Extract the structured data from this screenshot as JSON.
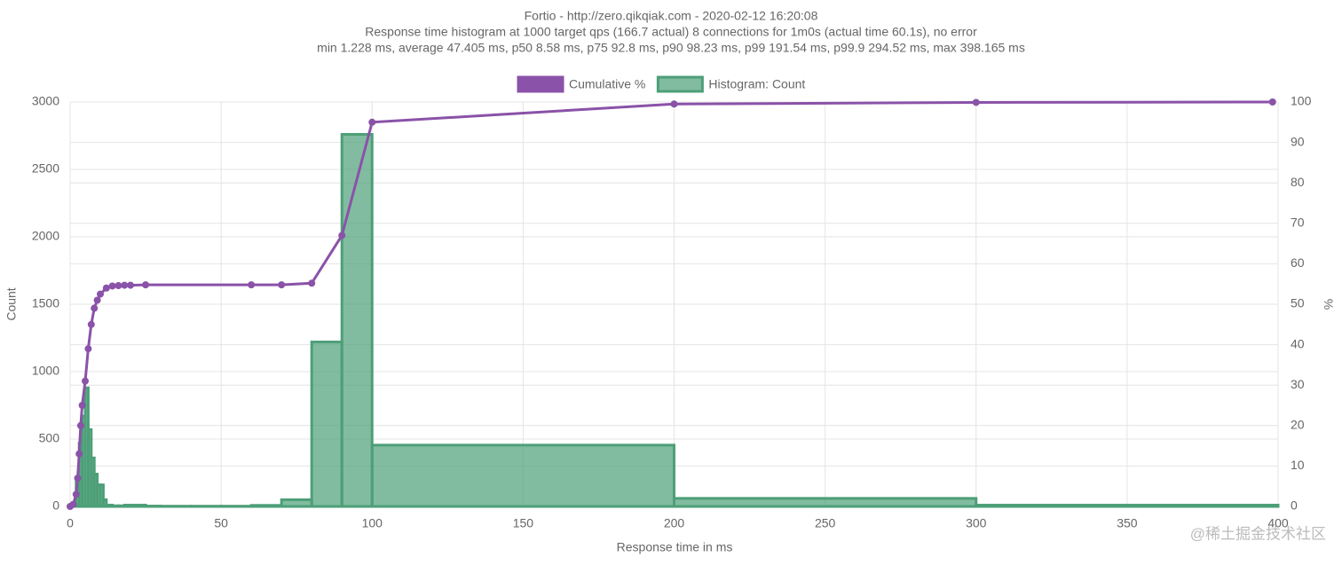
{
  "chart_data": {
    "type": "histogram",
    "title": "Fortio - http://zero.qikqiak.com - 2020-02-12 16:20:08",
    "subtitle": [
      "Response time histogram at 1000 target qps (166.7 actual) 8 connections for 1m0s (actual time 60.1s), no error",
      "min 1.228 ms, average 47.405 ms, p50 8.58 ms, p75 92.8 ms, p90 98.23 ms, p99 191.54 ms, p99.9 294.52 ms, max 398.165 ms"
    ],
    "x_label": "Response time in ms",
    "y_label": "Count",
    "y2_label": "%",
    "watermark": "@稀土掘金技术社区",
    "xlim": [
      0,
      400
    ],
    "xticks": [
      0,
      50,
      100,
      150,
      200,
      250,
      300,
      350,
      400
    ],
    "ylim": [
      0,
      3000
    ],
    "yticks": [
      0,
      500,
      1000,
      1500,
      2000,
      2500,
      3000
    ],
    "y2lim": [
      0,
      100
    ],
    "y2ticks": [
      0,
      10,
      20,
      30,
      40,
      50,
      60,
      70,
      80,
      90,
      100
    ],
    "grid": true,
    "series": [
      {
        "name": "Cumulative %",
        "color": "#8a52a8",
        "kind": "line",
        "axis": "y2",
        "x": [
          0,
          1,
          2,
          2.5,
          3,
          3.5,
          4,
          5,
          6,
          7,
          8,
          9,
          10,
          12,
          14,
          16,
          18,
          20,
          25,
          60,
          70,
          80,
          90,
          100,
          200,
          300,
          398.165
        ],
        "values": [
          0,
          0.5,
          3,
          7,
          13,
          20,
          25,
          31,
          39,
          45,
          49,
          51,
          52.5,
          54,
          54.5,
          54.6,
          54.7,
          54.7,
          54.8,
          54.8,
          54.8,
          55.2,
          67,
          95,
          99.5,
          99.9,
          100
        ]
      },
      {
        "name": "Histogram: Count",
        "color": "#4d9f78",
        "kind": "bars",
        "bins": [
          1,
          2,
          3,
          4,
          5,
          6,
          7,
          8,
          9,
          10,
          11,
          12,
          14,
          16,
          18,
          20,
          25,
          30,
          40,
          50,
          60,
          70,
          80,
          90,
          100,
          200,
          300,
          400
        ],
        "values": [
          5,
          200,
          470,
          670,
          880,
          570,
          360,
          240,
          160,
          160,
          50,
          10,
          5,
          5,
          10,
          10,
          3,
          2,
          2,
          2,
          8,
          50,
          1220,
          2760,
          455,
          60,
          10
        ]
      }
    ]
  }
}
